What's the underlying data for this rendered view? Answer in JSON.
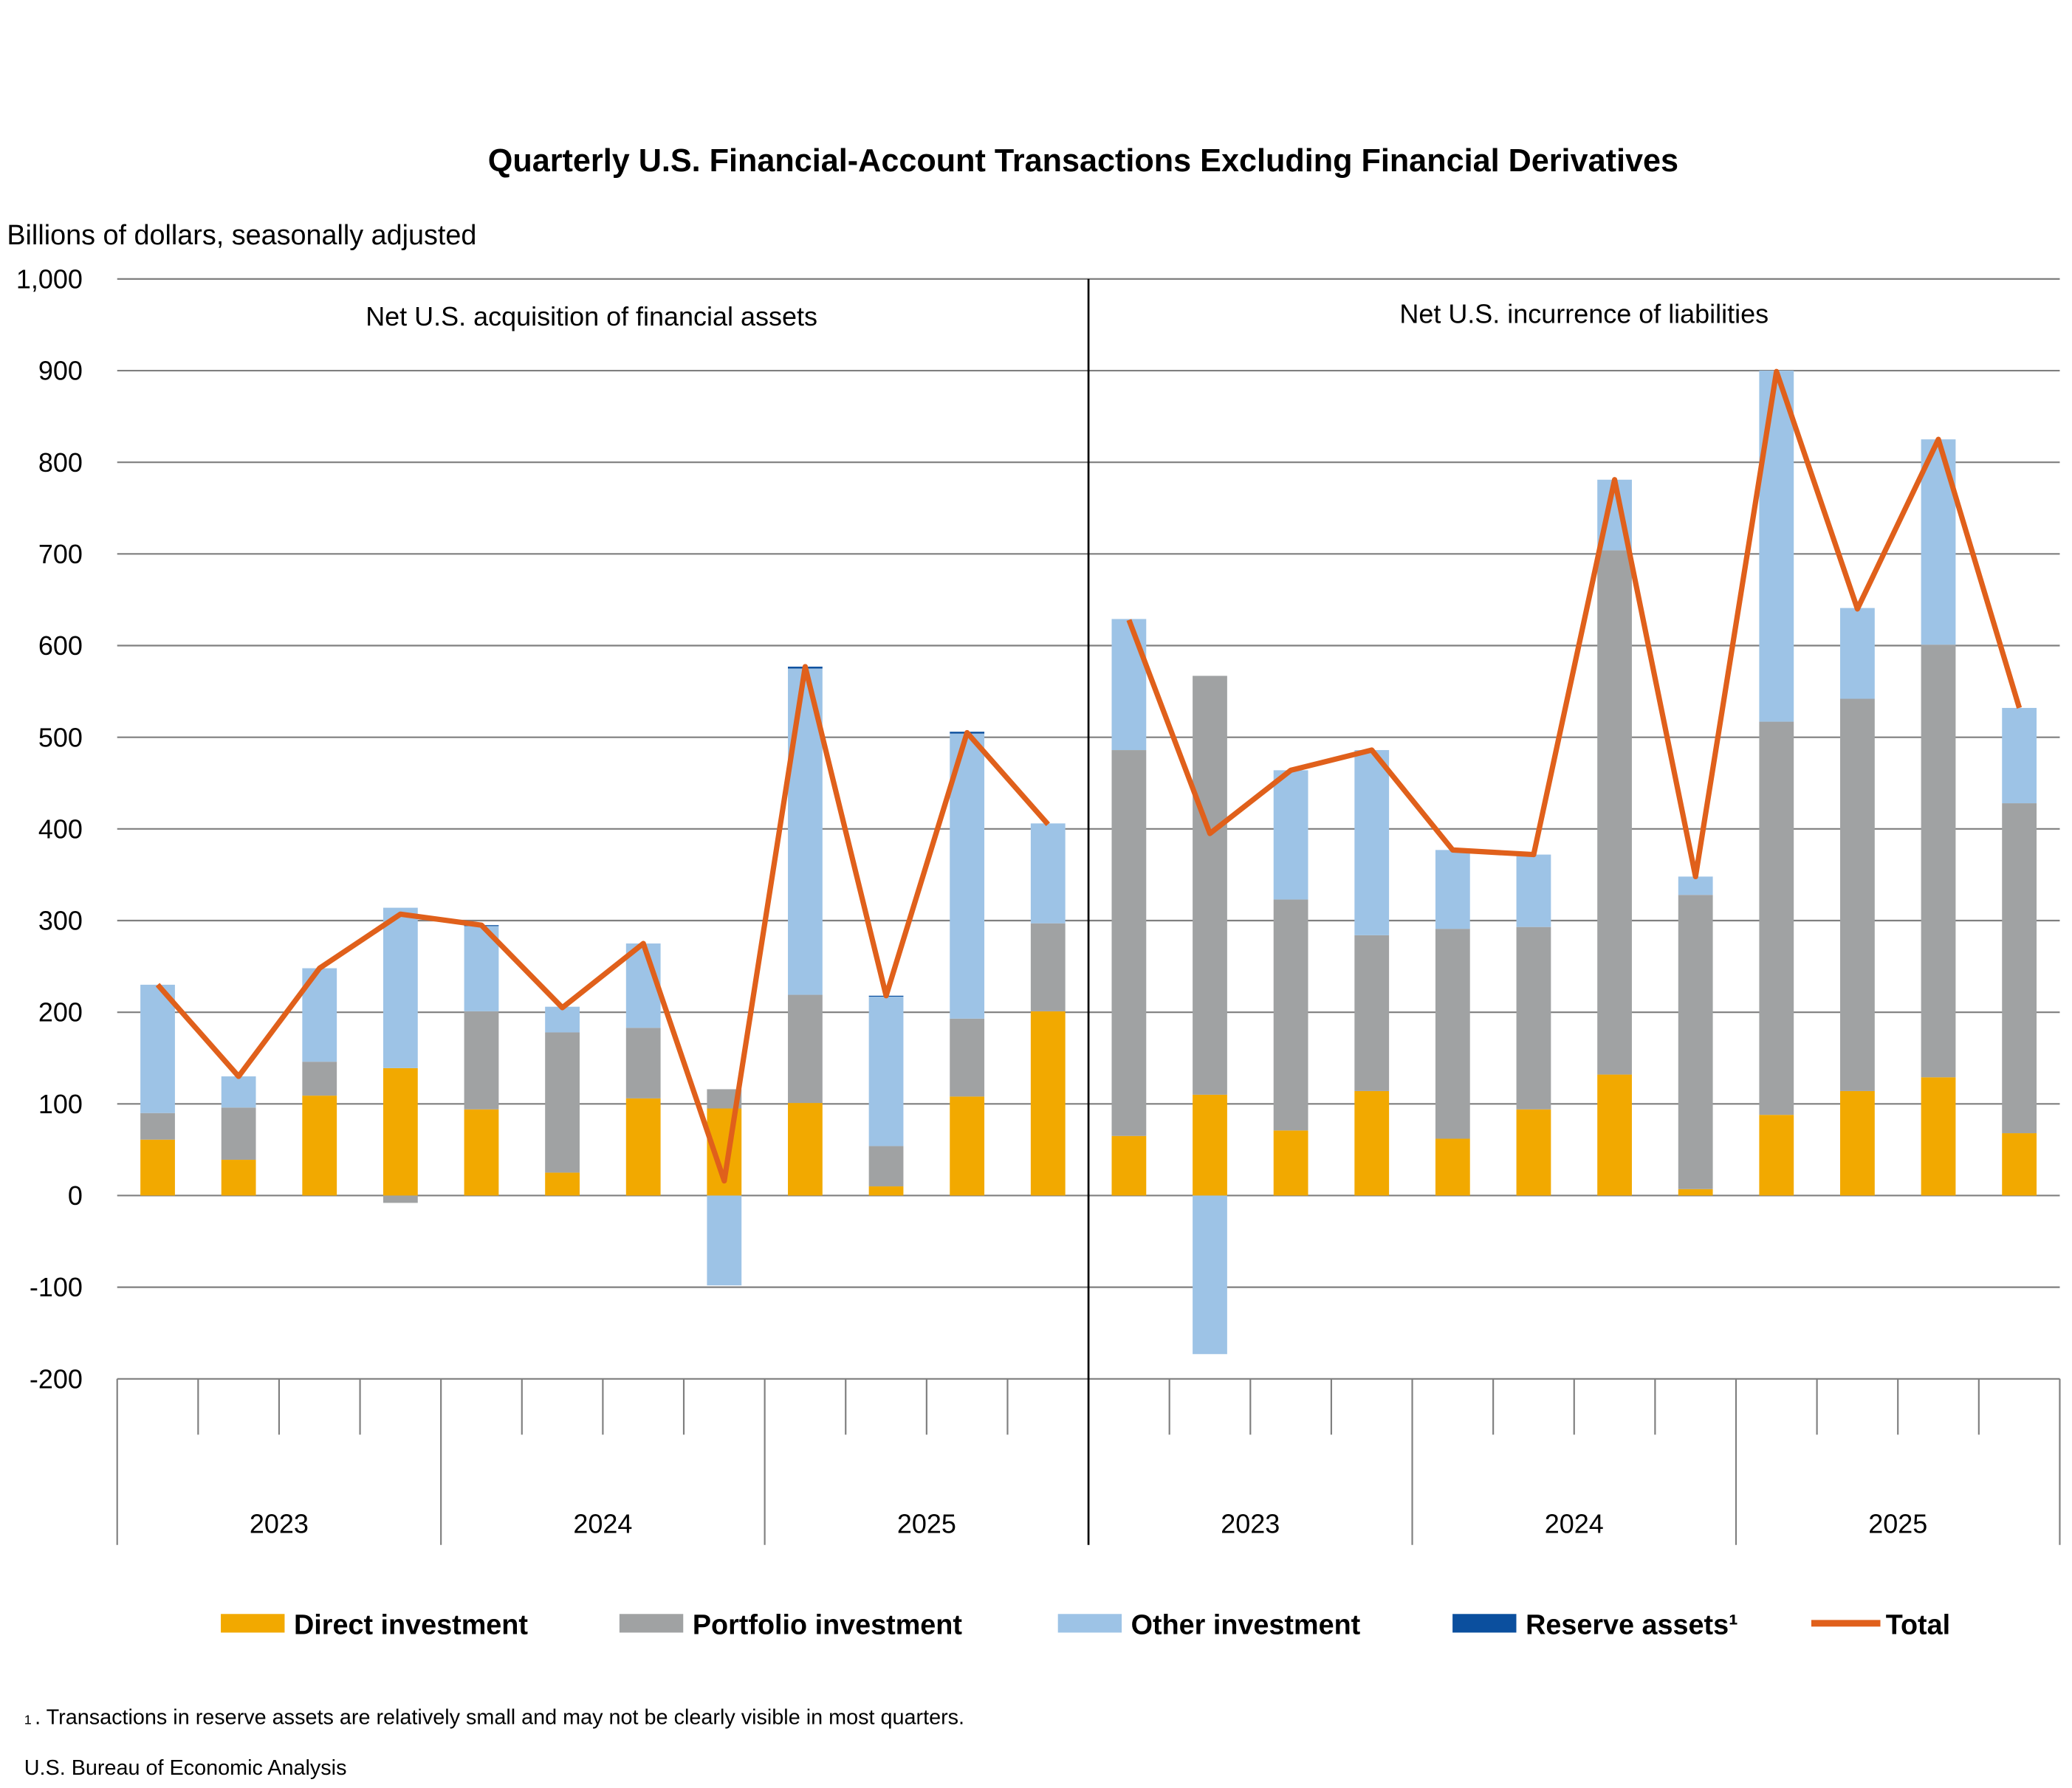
{
  "chart_data": {
    "type": "bar",
    "stacked": true,
    "title": "Quarterly U.S. Financial-Account Transactions Excluding Financial Derivatives",
    "ylabel": "Billions of dollars, seasonally adjusted",
    "ylim": [
      -200,
      1000
    ],
    "yticks": [
      -200,
      -100,
      0,
      100,
      200,
      300,
      400,
      500,
      600,
      700,
      800,
      900,
      1000
    ],
    "ytick_labels": [
      "-200",
      "-100",
      "0",
      "100",
      "200",
      "300",
      "400",
      "500",
      "600",
      "700",
      "800",
      "900",
      "1,000"
    ],
    "grid": true,
    "legend_position": "bottom",
    "colors": {
      "direct": "#F2A900",
      "portfolio": "#A0A2A3",
      "other": "#9DC3E6",
      "reserve": "#0B4F9E",
      "total": "#E0601B"
    },
    "legend": [
      "Direct investment",
      "Portfolio investment",
      "Other investment",
      "Reserve assets¹",
      "Total"
    ],
    "panels": [
      {
        "label": "Net U.S. acquisition of financial assets",
        "years": [
          "2023",
          "2024",
          "2025"
        ],
        "quarters_per_year": 4,
        "direct": [
          61,
          39,
          109,
          139,
          94,
          25,
          106,
          95,
          101,
          10,
          108,
          201
        ],
        "portfolio": [
          29,
          57,
          37,
          -8,
          107,
          153,
          77,
          21,
          118,
          44,
          85,
          96
        ],
        "other": [
          140,
          34,
          102,
          175,
          93,
          28,
          92,
          -98,
          356,
          163,
          311,
          109
        ],
        "reserve": [
          0,
          0,
          0,
          0,
          1,
          0,
          0,
          0,
          2,
          1,
          2,
          0
        ],
        "total": [
          230,
          130,
          248,
          307,
          295,
          205,
          275,
          16,
          577,
          218,
          505,
          405
        ]
      },
      {
        "label": "Net U.S. incurrence of liabilities",
        "years": [
          "2023",
          "2024",
          "2025"
        ],
        "quarters_per_year": 4,
        "direct": [
          65,
          110,
          71,
          114,
          62,
          94,
          132,
          7,
          88,
          114,
          129,
          68
        ],
        "portfolio": [
          421,
          457,
          252,
          170,
          229,
          199,
          572,
          321,
          429,
          428,
          472,
          360
        ],
        "other": [
          143,
          -173,
          141,
          202,
          86,
          79,
          77,
          20,
          383,
          99,
          224,
          104
        ],
        "reserve": [
          0,
          0,
          0,
          0,
          0,
          0,
          0,
          0,
          0,
          0,
          0,
          0
        ],
        "total": [
          628,
          395,
          464,
          486,
          377,
          372,
          781,
          348,
          899,
          640,
          825,
          532
        ]
      }
    ]
  },
  "footnote_marker": "1",
  "footnote": ". Transactions in reserve assets are relatively small and may not be clearly visible in most quarters.",
  "source": "U.S. Bureau of Economic Analysis"
}
